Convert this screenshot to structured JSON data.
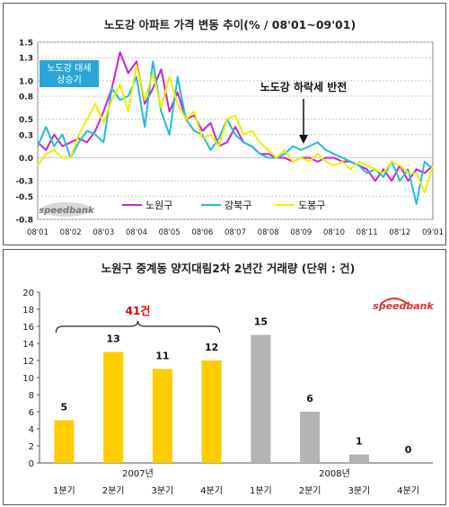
{
  "chart_data": [
    {
      "type": "line",
      "title": "노도강 아파트 가격 변동 추이(% / 08'01~09'01)",
      "x_tick_labels": [
        "08'01",
        "08'02",
        "08'03",
        "08'04",
        "08'05",
        "08'06",
        "08'07",
        "08'08",
        "08'09",
        "08'10",
        "08'11",
        "08'12",
        "09'01"
      ],
      "ylim": [
        -0.8,
        1.5
      ],
      "y_ticks": [
        1.5,
        1.3,
        1.0,
        0.8,
        0.5,
        0.3,
        0.0,
        -0.3,
        -0.5,
        -0.8
      ],
      "y_tick_labels": [
        "1.5",
        "1.3",
        "1.0",
        "0.8",
        "0.5",
        "0.3",
        "0.0",
        "-0.3",
        "-0.5",
        "-0.8"
      ],
      "grid": true,
      "legend_position": "bottom-center",
      "annotations": [
        {
          "text": "노도강 대세 상승기",
          "style": "callout-box"
        },
        {
          "text": "노도강 하락세 반전",
          "style": "arrow",
          "x_index": 8.5
        }
      ],
      "logo": "speedbank",
      "series": [
        {
          "name": "노원구",
          "color": "#cc22cc",
          "x": [
            0,
            0.25,
            0.5,
            0.75,
            1,
            1.25,
            1.5,
            1.75,
            2,
            2.25,
            2.5,
            2.75,
            3,
            3.25,
            3.5,
            3.75,
            4,
            4.25,
            4.5,
            4.75,
            5,
            5.25,
            5.5,
            5.75,
            6,
            6.25,
            6.5,
            6.75,
            7,
            7.25,
            7.5,
            7.75,
            8,
            8.25,
            8.5,
            8.75,
            9,
            9.25,
            9.5,
            9.75,
            10,
            10.25,
            10.5,
            10.75,
            11,
            11.25,
            11.5,
            11.75,
            12
          ],
          "values": [
            0.2,
            0.1,
            0.3,
            0.15,
            0.2,
            0.25,
            0.2,
            0.35,
            0.6,
            0.9,
            1.37,
            1.1,
            1.25,
            0.7,
            0.9,
            1.15,
            0.6,
            0.85,
            0.5,
            0.55,
            0.35,
            0.45,
            0.15,
            0.2,
            0.4,
            0.2,
            0.15,
            0.05,
            0.05,
            0.0,
            0.0,
            -0.05,
            0.0,
            0.0,
            -0.05,
            0.0,
            0.0,
            -0.05,
            -0.05,
            -0.1,
            -0.15,
            -0.3,
            -0.15,
            -0.3,
            -0.1,
            -0.3,
            -0.15,
            -0.2,
            -0.1
          ]
        },
        {
          "name": "강북구",
          "color": "#22bbdd",
          "x": [
            0,
            0.25,
            0.5,
            0.75,
            1,
            1.25,
            1.5,
            1.75,
            2,
            2.25,
            2.5,
            2.75,
            3,
            3.25,
            3.5,
            3.75,
            4,
            4.25,
            4.5,
            4.75,
            5,
            5.25,
            5.5,
            5.75,
            6,
            6.25,
            6.5,
            6.75,
            7,
            7.25,
            7.5,
            7.75,
            8,
            8.25,
            8.5,
            8.75,
            9,
            9.25,
            9.5,
            9.75,
            10,
            10.25,
            10.5,
            10.75,
            11,
            11.25,
            11.5,
            11.75,
            12
          ],
          "values": [
            0.15,
            0.4,
            0.15,
            0.3,
            0.0,
            0.2,
            0.35,
            0.3,
            0.2,
            0.9,
            0.75,
            0.8,
            1.05,
            0.4,
            1.25,
            0.6,
            0.3,
            1.05,
            0.5,
            0.35,
            0.3,
            0.1,
            0.25,
            0.5,
            0.3,
            0.2,
            0.15,
            0.05,
            0.0,
            0.0,
            0.05,
            0.15,
            0.1,
            0.15,
            0.2,
            0.1,
            0.05,
            0.0,
            -0.05,
            -0.1,
            -0.2,
            -0.15,
            -0.25,
            -0.05,
            -0.3,
            -0.15,
            -0.6,
            -0.05,
            -0.15
          ]
        },
        {
          "name": "도봉구",
          "color": "#eeee00",
          "x": [
            0,
            0.25,
            0.5,
            0.75,
            1,
            1.25,
            1.5,
            1.75,
            2,
            2.25,
            2.5,
            2.75,
            3,
            3.25,
            3.5,
            3.75,
            4,
            4.25,
            4.5,
            4.75,
            5,
            5.25,
            5.5,
            5.75,
            6,
            6.25,
            6.5,
            6.75,
            7,
            7.25,
            7.5,
            7.75,
            8,
            8.25,
            8.5,
            8.75,
            9,
            9.25,
            9.5,
            9.75,
            10,
            10.25,
            10.5,
            10.75,
            11,
            11.25,
            11.5,
            11.75,
            12
          ],
          "values": [
            -0.1,
            0.05,
            0.1,
            0.0,
            0.0,
            0.3,
            0.5,
            0.7,
            0.45,
            0.75,
            0.95,
            0.6,
            1.2,
            0.75,
            1.1,
            0.65,
            1.05,
            0.7,
            0.5,
            0.6,
            0.25,
            0.3,
            0.15,
            0.5,
            0.55,
            0.3,
            0.35,
            0.2,
            0.1,
            0.0,
            0.1,
            -0.05,
            0.0,
            -0.05,
            0.05,
            -0.05,
            -0.1,
            -0.05,
            -0.15,
            -0.05,
            -0.1,
            -0.15,
            -0.2,
            -0.05,
            -0.1,
            -0.2,
            -0.2,
            -0.45,
            -0.1
          ]
        }
      ]
    },
    {
      "type": "bar",
      "title": "노원구 중계동 양지대림2차 2년간 거래량 (단위 : 건)",
      "categories": [
        "1분기",
        "2분기",
        "3분기",
        "4분기",
        "1분기",
        "2분기",
        "3분기",
        "4분기"
      ],
      "groups": [
        {
          "label": "2007년",
          "colors": "#ffcc00"
        },
        {
          "label": "2008년",
          "colors": "#b4b4b4"
        }
      ],
      "values": [
        5,
        13,
        11,
        12,
        15,
        6,
        1,
        0
      ],
      "ylim": [
        0,
        20
      ],
      "y_ticks": [
        0,
        2,
        4,
        6,
        8,
        10,
        12,
        14,
        16,
        18,
        20
      ],
      "grid": false,
      "annotations": [
        {
          "text": "41건",
          "color": "#dd0000",
          "spans": [
            0,
            3
          ]
        }
      ],
      "logo": "speedbank"
    }
  ]
}
